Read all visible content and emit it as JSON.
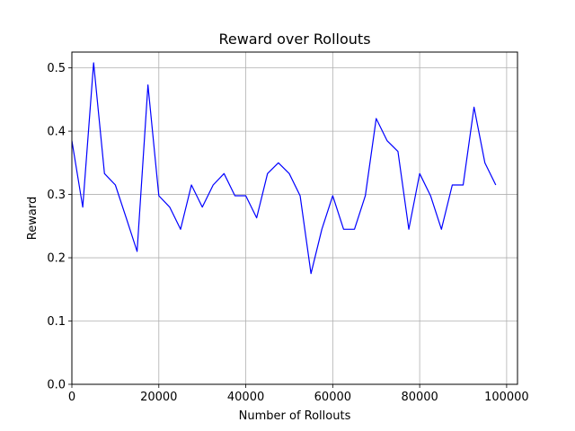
{
  "chart_data": {
    "type": "line",
    "title": "Reward over Rollouts",
    "xlabel": "Number of Rollouts",
    "ylabel": "Reward",
    "xlim": [
      0,
      102500
    ],
    "ylim": [
      0,
      0.525
    ],
    "xticks": [
      0,
      20000,
      40000,
      60000,
      80000,
      100000
    ],
    "xtick_labels": [
      "0",
      "20000",
      "40000",
      "60000",
      "80000",
      "100000"
    ],
    "yticks": [
      0.0,
      0.1,
      0.2,
      0.3,
      0.4,
      0.5
    ],
    "ytick_labels": [
      "0.0",
      "0.1",
      "0.2",
      "0.3",
      "0.4",
      "0.5"
    ],
    "grid": true,
    "line_color": "#0000ff",
    "series": [
      {
        "x": [
          0,
          2500,
          5000,
          7500,
          10000,
          12500,
          15000,
          17500,
          20000,
          22500,
          25000,
          27500,
          30000,
          32500,
          35000,
          37500,
          40000,
          42500,
          45000,
          47500,
          50000,
          52500,
          55000,
          57500,
          60000,
          62500,
          65000,
          67500,
          70000,
          72500,
          75000,
          77500,
          80000,
          82500,
          85000,
          87500,
          90000,
          92500,
          95000,
          97500
        ],
        "values": [
          0.385,
          0.28,
          0.508,
          0.333,
          0.315,
          0.263,
          0.21,
          0.473,
          0.298,
          0.28,
          0.245,
          0.315,
          0.28,
          0.315,
          0.333,
          0.298,
          0.298,
          0.263,
          0.333,
          0.35,
          0.333,
          0.298,
          0.175,
          0.245,
          0.298,
          0.245,
          0.245,
          0.298,
          0.42,
          0.385,
          0.368,
          0.245,
          0.333,
          0.298,
          0.245,
          0.315,
          0.315,
          0.438,
          0.35,
          0.315
        ]
      }
    ]
  }
}
